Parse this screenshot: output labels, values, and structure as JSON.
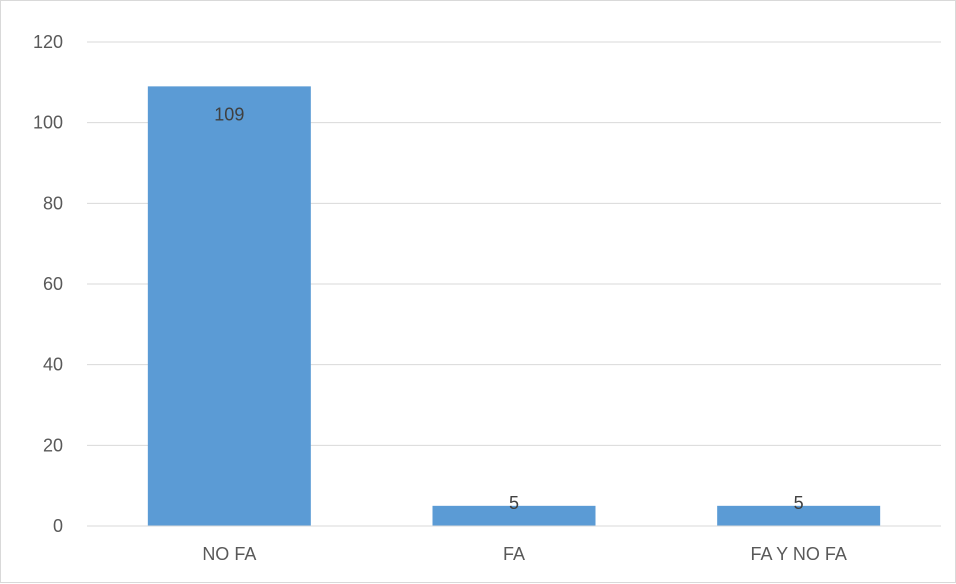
{
  "chart_data": {
    "type": "bar",
    "title": "",
    "xlabel": "",
    "ylabel": "",
    "categories": [
      "NO FA",
      "FA",
      "FA Y NO FA"
    ],
    "values": [
      109,
      5,
      5
    ],
    "data_labels": [
      "109",
      "5",
      "5"
    ],
    "ylim": [
      0,
      120
    ],
    "yticks": [
      0,
      20,
      40,
      60,
      80,
      100,
      120
    ],
    "ytick_labels": [
      "0",
      "20",
      "40",
      "60",
      "80",
      "100",
      "120"
    ],
    "grid": true,
    "legend": "none",
    "colors": {
      "bar": "#5b9bd5",
      "grid": "#d9d9d9",
      "text": "#595959"
    }
  }
}
